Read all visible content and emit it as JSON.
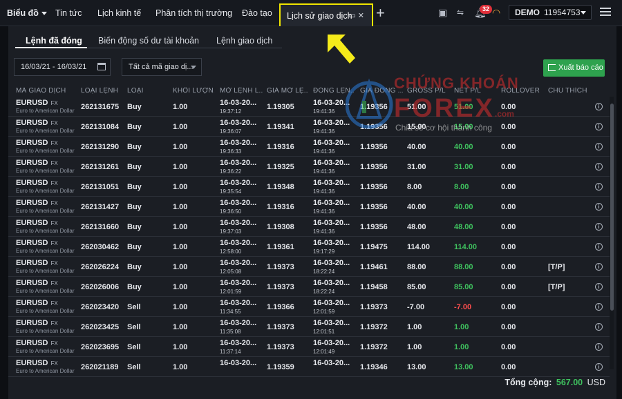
{
  "topbar": {
    "nav": [
      "Biểu đồ",
      "Tin tức",
      "Lịch kinh tế",
      "Phân tích thị trường",
      "Đào tạo"
    ],
    "active_tab": "Lịch sử giao dịch",
    "notification_count": "32",
    "account_type": "DEMO",
    "account_number": "11954753"
  },
  "subtabs": [
    "Lệnh đã đóng",
    "Biến động số dư tài khoản",
    "Lệnh giao dịch"
  ],
  "filters": {
    "date_range": "16/03/21 - 16/03/21",
    "symbol_filter": "Tất cả mã giao dị...",
    "export_label": "Xuất báo cáo"
  },
  "table": {
    "headers": [
      "MÃ GIAO DỊCH",
      "LOẠI LỆNH",
      "LOẠI",
      "KHỐI LƯỢN...",
      "MỞ LỆNH L...",
      "GIÁ MỞ LỆ...",
      "ĐÓNG LỆN...",
      "GIÁ ĐÓNG ...",
      "GROSS P/L",
      "NET P/L",
      "ROLLOVER",
      "CHÚ THÍCH"
    ],
    "rows": [
      {
        "symbol": "EURUSD",
        "market": "FX",
        "name": "Euro to American Dollar",
        "id": "262131675",
        "type": "Buy",
        "volume": "1.00",
        "open_date": "16-03-20...",
        "open_time": "19:37:12",
        "open_price": "1.19305",
        "close_date": "16-03-20...",
        "close_time": "19:41:36",
        "close_price": "1.19356",
        "gross": "51.00",
        "net": "51.00",
        "rollover": "0.00",
        "note": "",
        "pl": "pos"
      },
      {
        "symbol": "EURUSD",
        "market": "FX",
        "name": "Euro to American Dollar",
        "id": "262131084",
        "type": "Buy",
        "volume": "1.00",
        "open_date": "16-03-20...",
        "open_time": "19:36:07",
        "open_price": "1.19341",
        "close_date": "16-03-20...",
        "close_time": "19:41:36",
        "close_price": "1.19356",
        "gross": "15.00",
        "net": "15.00",
        "rollover": "0.00",
        "note": "",
        "pl": "pos"
      },
      {
        "symbol": "EURUSD",
        "market": "FX",
        "name": "Euro to American Dollar",
        "id": "262131290",
        "type": "Buy",
        "volume": "1.00",
        "open_date": "16-03-20...",
        "open_time": "19:36:33",
        "open_price": "1.19316",
        "close_date": "16-03-20...",
        "close_time": "19:41:36",
        "close_price": "1.19356",
        "gross": "40.00",
        "net": "40.00",
        "rollover": "0.00",
        "note": "",
        "pl": "pos"
      },
      {
        "symbol": "EURUSD",
        "market": "FX",
        "name": "Euro to American Dollar",
        "id": "262131261",
        "type": "Buy",
        "volume": "1.00",
        "open_date": "16-03-20...",
        "open_time": "19:36:22",
        "open_price": "1.19325",
        "close_date": "16-03-20...",
        "close_time": "19:41:36",
        "close_price": "1.19356",
        "gross": "31.00",
        "net": "31.00",
        "rollover": "0.00",
        "note": "",
        "pl": "pos"
      },
      {
        "symbol": "EURUSD",
        "market": "FX",
        "name": "Euro to American Dollar",
        "id": "262131051",
        "type": "Buy",
        "volume": "1.00",
        "open_date": "16-03-20...",
        "open_time": "19:35:54",
        "open_price": "1.19348",
        "close_date": "16-03-20...",
        "close_time": "19:41:36",
        "close_price": "1.19356",
        "gross": "8.00",
        "net": "8.00",
        "rollover": "0.00",
        "note": "",
        "pl": "pos"
      },
      {
        "symbol": "EURUSD",
        "market": "FX",
        "name": "Euro to American Dollar",
        "id": "262131427",
        "type": "Buy",
        "volume": "1.00",
        "open_date": "16-03-20...",
        "open_time": "19:36:50",
        "open_price": "1.19316",
        "close_date": "16-03-20...",
        "close_time": "19:41:36",
        "close_price": "1.19356",
        "gross": "40.00",
        "net": "40.00",
        "rollover": "0.00",
        "note": "",
        "pl": "pos"
      },
      {
        "symbol": "EURUSD",
        "market": "FX",
        "name": "Euro to American Dollar",
        "id": "262131660",
        "type": "Buy",
        "volume": "1.00",
        "open_date": "16-03-20...",
        "open_time": "19:37:03",
        "open_price": "1.19308",
        "close_date": "16-03-20...",
        "close_time": "19:41:36",
        "close_price": "1.19356",
        "gross": "48.00",
        "net": "48.00",
        "rollover": "0.00",
        "note": "",
        "pl": "pos"
      },
      {
        "symbol": "EURUSD",
        "market": "FX",
        "name": "Euro to American Dollar",
        "id": "262030462",
        "type": "Buy",
        "volume": "1.00",
        "open_date": "16-03-20...",
        "open_time": "12:58:00",
        "open_price": "1.19361",
        "close_date": "16-03-20...",
        "close_time": "19:17:29",
        "close_price": "1.19475",
        "gross": "114.00",
        "net": "114.00",
        "rollover": "0.00",
        "note": "",
        "pl": "pos"
      },
      {
        "symbol": "EURUSD",
        "market": "FX",
        "name": "Euro to American Dollar",
        "id": "262026224",
        "type": "Buy",
        "volume": "1.00",
        "open_date": "16-03-20...",
        "open_time": "12:05:08",
        "open_price": "1.19373",
        "close_date": "16-03-20...",
        "close_time": "18:22:24",
        "close_price": "1.19461",
        "gross": "88.00",
        "net": "88.00",
        "rollover": "0.00",
        "note": "[T/P]",
        "pl": "pos"
      },
      {
        "symbol": "EURUSD",
        "market": "FX",
        "name": "Euro to American Dollar",
        "id": "262026006",
        "type": "Buy",
        "volume": "1.00",
        "open_date": "16-03-20...",
        "open_time": "12:01:59",
        "open_price": "1.19373",
        "close_date": "16-03-20...",
        "close_time": "18:22:24",
        "close_price": "1.19458",
        "gross": "85.00",
        "net": "85.00",
        "rollover": "0.00",
        "note": "[T/P]",
        "pl": "pos"
      },
      {
        "symbol": "EURUSD",
        "market": "FX",
        "name": "Euro to American Dollar",
        "id": "262023420",
        "type": "Sell",
        "volume": "1.00",
        "open_date": "16-03-20...",
        "open_time": "11:34:55",
        "open_price": "1.19366",
        "close_date": "16-03-20...",
        "close_time": "12:01:59",
        "close_price": "1.19373",
        "gross": "-7.00",
        "net": "-7.00",
        "rollover": "0.00",
        "note": "",
        "pl": "neg"
      },
      {
        "symbol": "EURUSD",
        "market": "FX",
        "name": "Euro to American Dollar",
        "id": "262023425",
        "type": "Sell",
        "volume": "1.00",
        "open_date": "16-03-20...",
        "open_time": "11:35:08",
        "open_price": "1.19373",
        "close_date": "16-03-20...",
        "close_time": "12:01:51",
        "close_price": "1.19372",
        "gross": "1.00",
        "net": "1.00",
        "rollover": "0.00",
        "note": "",
        "pl": "pos"
      },
      {
        "symbol": "EURUSD",
        "market": "FX",
        "name": "Euro to American Dollar",
        "id": "262023695",
        "type": "Sell",
        "volume": "1.00",
        "open_date": "16-03-20...",
        "open_time": "11:37:14",
        "open_price": "1.19373",
        "close_date": "16-03-20...",
        "close_time": "12:01:49",
        "close_price": "1.19372",
        "gross": "1.00",
        "net": "1.00",
        "rollover": "0.00",
        "note": "",
        "pl": "pos"
      },
      {
        "symbol": "EURUSD",
        "market": "FX",
        "name": "Euro to American Dollar",
        "id": "262021189",
        "type": "Sell",
        "volume": "1.00",
        "open_date": "16-03-20...",
        "open_time": "",
        "open_price": "1.19359",
        "close_date": "16-03-20...",
        "close_time": "",
        "close_price": "1.19346",
        "gross": "13.00",
        "net": "13.00",
        "rollover": "0.00",
        "note": "",
        "pl": "pos"
      }
    ]
  },
  "footer": {
    "total_label": "Tổng cộng:",
    "total_value": "567.00",
    "currency": "USD"
  },
  "watermark": {
    "line1": "CHỨNG KHOÁN",
    "line2": "FOREX",
    "line3": "Chia sẻ cơ hội thành công",
    "suffix": ".com"
  },
  "colors": {
    "profit": "#3fc35f",
    "loss": "#ff4e4e",
    "export_button": "#2ea24e",
    "highlight": "#f1e600"
  }
}
